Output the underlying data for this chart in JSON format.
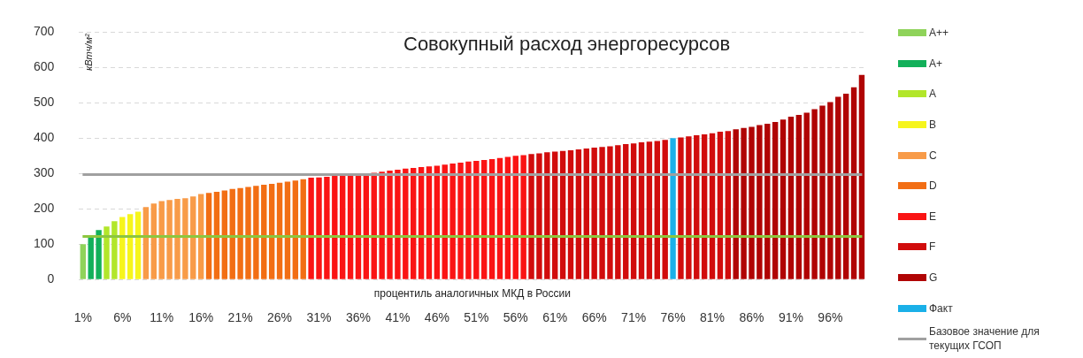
{
  "chart_data": {
    "type": "bar",
    "title": "Совокупный расход энергоресурсов",
    "xlabel": "процентиль аналогичных МКД в России",
    "ylabel": "кВтч/м²",
    "categories": [
      "1%",
      null,
      null,
      null,
      null,
      "6%",
      null,
      null,
      null,
      null,
      "11%",
      null,
      null,
      null,
      null,
      "16%",
      null,
      null,
      null,
      null,
      "21%",
      null,
      null,
      null,
      null,
      "26%",
      null,
      null,
      null,
      null,
      "31%",
      null,
      null,
      null,
      null,
      "36%",
      null,
      null,
      null,
      null,
      "41%",
      null,
      null,
      null,
      null,
      "46%",
      null,
      null,
      null,
      null,
      "51%",
      null,
      null,
      null,
      null,
      "56%",
      null,
      null,
      null,
      null,
      "61%",
      null,
      null,
      null,
      null,
      "66%",
      null,
      null,
      null,
      null,
      "71%",
      null,
      null,
      null,
      null,
      "76%",
      null,
      null,
      null,
      null,
      "81%",
      null,
      null,
      null,
      null,
      "86%",
      null,
      null,
      null,
      null,
      "91%",
      null,
      null,
      null,
      null,
      "96%",
      null,
      null,
      null,
      null
    ],
    "series": [
      {
        "name": "A++",
        "color": "#8fd35a",
        "values": [
          100,
          null,
          null,
          null,
          null,
          null,
          null,
          null,
          null,
          null,
          null,
          null,
          null,
          null,
          null,
          null,
          null,
          null,
          null,
          null,
          null,
          null,
          null,
          null,
          null,
          null,
          null,
          null,
          null,
          null,
          null,
          null,
          null,
          null,
          null,
          null,
          null,
          null,
          null,
          null,
          null,
          null,
          null,
          null,
          null,
          null,
          null,
          null,
          null,
          null,
          null,
          null,
          null,
          null,
          null,
          null,
          null,
          null,
          null,
          null,
          null,
          null,
          null,
          null,
          null,
          null,
          null,
          null,
          null,
          null,
          null,
          null,
          null,
          null,
          null,
          null,
          null,
          null,
          null,
          null,
          null,
          null,
          null,
          null,
          null,
          null,
          null,
          null,
          null,
          null,
          null,
          null,
          null,
          null,
          null,
          null,
          null,
          null,
          null,
          null
        ]
      },
      {
        "name": "A+",
        "color": "#12b05a",
        "values": [
          null,
          120,
          140,
          null,
          null,
          null,
          null,
          null,
          null,
          null,
          null,
          null,
          null,
          null,
          null,
          null,
          null,
          null,
          null,
          null,
          null,
          null,
          null,
          null,
          null,
          null,
          null,
          null,
          null,
          null,
          null,
          null,
          null,
          null,
          null,
          null,
          null,
          null,
          null,
          null,
          null,
          null,
          null,
          null,
          null,
          null,
          null,
          null,
          null,
          null,
          null,
          null,
          null,
          null,
          null,
          null,
          null,
          null,
          null,
          null,
          null,
          null,
          null,
          null,
          null,
          null,
          null,
          null,
          null,
          null,
          null,
          null,
          null,
          null,
          null,
          null,
          null,
          null,
          null,
          null,
          null,
          null,
          null,
          null,
          null,
          null,
          null,
          null,
          null,
          null,
          null,
          null,
          null,
          null,
          null,
          null,
          null,
          null,
          null,
          null
        ]
      },
      {
        "name": "A",
        "color": "#b2e62a",
        "values": [
          null,
          null,
          null,
          150,
          165,
          null,
          null,
          null,
          null,
          null,
          null,
          null,
          null,
          null,
          null,
          null,
          null,
          null,
          null,
          null,
          null,
          null,
          null,
          null,
          null,
          null,
          null,
          null,
          null,
          null,
          null,
          null,
          null,
          null,
          null,
          null,
          null,
          null,
          null,
          null,
          null,
          null,
          null,
          null,
          null,
          null,
          null,
          null,
          null,
          null,
          null,
          null,
          null,
          null,
          null,
          null,
          null,
          null,
          null,
          null,
          null,
          null,
          null,
          null,
          null,
          null,
          null,
          null,
          null,
          null,
          null,
          null,
          null,
          null,
          null,
          null,
          null,
          null,
          null,
          null,
          null,
          null,
          null,
          null,
          null,
          null,
          null,
          null,
          null,
          null,
          null,
          null,
          null,
          null,
          null,
          null,
          null,
          null,
          null,
          null
        ]
      },
      {
        "name": "B",
        "color": "#f6f51c",
        "values": [
          null,
          null,
          null,
          null,
          null,
          177,
          185,
          192,
          null,
          null,
          null,
          null,
          null,
          null,
          null,
          null,
          null,
          null,
          null,
          null,
          null,
          null,
          null,
          null,
          null,
          null,
          null,
          null,
          null,
          null,
          null,
          null,
          null,
          null,
          null,
          null,
          null,
          null,
          null,
          null,
          null,
          null,
          null,
          null,
          null,
          null,
          null,
          null,
          null,
          null,
          null,
          null,
          null,
          null,
          null,
          null,
          null,
          null,
          null,
          null,
          null,
          null,
          null,
          null,
          null,
          null,
          null,
          null,
          null,
          null,
          null,
          null,
          null,
          null,
          null,
          null,
          null,
          null,
          null,
          null,
          null,
          null,
          null,
          null,
          null,
          null,
          null,
          null,
          null,
          null,
          null,
          null,
          null,
          null,
          null,
          null,
          null,
          null,
          null,
          null
        ]
      },
      {
        "name": "C",
        "color": "#f89b48",
        "values": [
          null,
          null,
          null,
          null,
          null,
          null,
          null,
          null,
          205,
          215,
          222,
          225,
          228,
          230,
          235,
          242,
          null,
          null,
          null,
          null,
          null,
          null,
          null,
          null,
          null,
          null,
          null,
          null,
          null,
          null,
          null,
          null,
          null,
          null,
          null,
          null,
          null,
          null,
          null,
          null,
          null,
          null,
          null,
          null,
          null,
          null,
          null,
          null,
          null,
          null,
          null,
          null,
          null,
          null,
          null,
          null,
          null,
          null,
          null,
          null,
          null,
          null,
          null,
          null,
          null,
          null,
          null,
          null,
          null,
          null,
          null,
          null,
          null,
          null,
          null,
          null,
          null,
          null,
          null,
          null,
          null,
          null,
          null,
          null,
          null,
          null,
          null,
          null,
          null,
          null,
          null,
          null,
          null,
          null,
          null,
          null,
          null,
          null,
          null,
          null
        ]
      },
      {
        "name": "D",
        "color": "#f26e14",
        "values": [
          null,
          null,
          null,
          null,
          null,
          null,
          null,
          null,
          null,
          null,
          null,
          null,
          null,
          null,
          null,
          null,
          245,
          248,
          252,
          256,
          259,
          262,
          265,
          268,
          271,
          274,
          277,
          280,
          284,
          null,
          null,
          null,
          null,
          null,
          null,
          null,
          null,
          null,
          null,
          null,
          null,
          null,
          null,
          null,
          null,
          null,
          null,
          null,
          null,
          null,
          null,
          null,
          null,
          null,
          null,
          null,
          null,
          null,
          null,
          null,
          null,
          null,
          null,
          null,
          null,
          null,
          null,
          null,
          null,
          null,
          null,
          null,
          null,
          null,
          null,
          null,
          null,
          null,
          null,
          null,
          null,
          null,
          null,
          null,
          null,
          null,
          null,
          null,
          null,
          null,
          null,
          null,
          null,
          null,
          null,
          null,
          null,
          null,
          null,
          null
        ]
      },
      {
        "name": "E",
        "color": "#fa1414",
        "values": [
          null,
          null,
          null,
          null,
          null,
          null,
          null,
          null,
          null,
          null,
          null,
          null,
          null,
          null,
          null,
          null,
          null,
          null,
          null,
          null,
          null,
          null,
          null,
          null,
          null,
          null,
          null,
          null,
          null,
          288,
          289,
          291,
          293,
          295,
          297,
          299,
          300,
          302,
          305,
          308,
          311,
          314,
          316,
          318,
          320,
          322,
          325,
          328,
          331,
          334,
          336,
          338,
          341,
          344,
          347,
          350,
          352,
          null,
          null,
          null,
          null,
          null,
          null,
          null,
          null,
          null,
          null,
          null,
          null,
          null,
          null,
          null,
          null,
          null,
          null,
          null,
          null,
          null,
          null,
          null,
          null,
          null,
          null,
          null,
          null,
          null,
          null,
          null,
          null,
          null,
          null,
          null,
          null,
          null,
          null,
          null,
          null,
          null,
          null,
          null
        ]
      },
      {
        "name": "F",
        "color": "#d10c0c",
        "values": [
          null,
          null,
          null,
          null,
          null,
          null,
          null,
          null,
          null,
          null,
          null,
          null,
          null,
          null,
          null,
          null,
          null,
          null,
          null,
          null,
          null,
          null,
          null,
          null,
          null,
          null,
          null,
          null,
          null,
          null,
          null,
          null,
          null,
          null,
          null,
          null,
          null,
          null,
          null,
          null,
          null,
          null,
          null,
          null,
          null,
          null,
          null,
          null,
          null,
          null,
          null,
          null,
          null,
          null,
          null,
          null,
          null,
          355,
          357,
          360,
          362,
          364,
          366,
          368,
          371,
          373,
          375,
          377,
          380,
          383,
          385,
          388,
          390,
          392,
          395,
          null,
          402,
          405,
          408,
          411,
          414,
          418,
          420,
          null,
          null,
          null,
          null,
          null,
          null,
          null,
          null,
          null,
          null,
          null,
          null,
          null,
          null,
          null,
          null,
          null
        ]
      },
      {
        "name": "G",
        "color": "#b00404",
        "values": [
          null,
          null,
          null,
          null,
          null,
          null,
          null,
          null,
          null,
          null,
          null,
          null,
          null,
          null,
          null,
          null,
          null,
          null,
          null,
          null,
          null,
          null,
          null,
          null,
          null,
          null,
          null,
          null,
          null,
          null,
          null,
          null,
          null,
          null,
          null,
          null,
          null,
          null,
          null,
          null,
          null,
          null,
          null,
          null,
          null,
          null,
          null,
          null,
          null,
          null,
          null,
          null,
          null,
          null,
          null,
          null,
          null,
          null,
          null,
          null,
          null,
          null,
          null,
          null,
          null,
          null,
          null,
          null,
          null,
          null,
          null,
          null,
          null,
          null,
          null,
          null,
          null,
          null,
          null,
          null,
          null,
          null,
          null,
          425,
          429,
          432,
          437,
          441,
          446,
          453,
          461,
          466,
          472,
          482,
          492,
          502,
          517,
          526,
          544,
          579
        ]
      },
      {
        "name": "Факт",
        "color": "#1ab0e8",
        "values": [
          null,
          null,
          null,
          null,
          null,
          null,
          null,
          null,
          null,
          null,
          null,
          null,
          null,
          null,
          null,
          null,
          null,
          null,
          null,
          null,
          null,
          null,
          null,
          null,
          null,
          null,
          null,
          null,
          null,
          null,
          null,
          null,
          null,
          null,
          null,
          null,
          null,
          null,
          null,
          null,
          null,
          null,
          null,
          null,
          null,
          null,
          null,
          null,
          null,
          null,
          null,
          null,
          null,
          null,
          null,
          null,
          null,
          null,
          null,
          null,
          null,
          null,
          null,
          null,
          null,
          null,
          null,
          null,
          null,
          null,
          null,
          null,
          null,
          null,
          null,
          400,
          null,
          null,
          null,
          null,
          null,
          null,
          null,
          null,
          null,
          null,
          null,
          null,
          null,
          null,
          null,
          null,
          null,
          null,
          null,
          null,
          null,
          null,
          null,
          null
        ]
      }
    ],
    "ref_lines": [
      {
        "axis": "y",
        "value": 297,
        "label": "Базовое значение для текущих ГСОП",
        "color": "#a0a0a0"
      },
      {
        "axis": "y",
        "value": 122,
        "color": "#8cc63f"
      }
    ],
    "ylim": [
      0,
      700
    ],
    "yticks": [
      0,
      100,
      200,
      300,
      400,
      500,
      600,
      700
    ],
    "grid": "y",
    "legend": "right"
  }
}
